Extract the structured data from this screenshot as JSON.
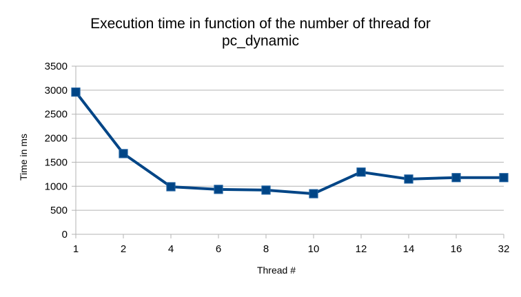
{
  "chart_data": {
    "type": "line",
    "title_lines": [
      "Execution time in function of the number of thread for",
      "pc_dynamic"
    ],
    "xlabel": "Thread #",
    "ylabel": "Time in ms",
    "categories": [
      "1",
      "2",
      "4",
      "6",
      "8",
      "10",
      "12",
      "14",
      "16",
      "32"
    ],
    "series": [
      {
        "values": [
          2960,
          1680,
          990,
          935,
          920,
          845,
          1295,
          1150,
          1180,
          1180
        ],
        "color": "#004586"
      }
    ],
    "ylim": [
      0,
      3500
    ],
    "yticks": [
      0,
      500,
      1000,
      1500,
      2000,
      2500,
      3000,
      3500
    ],
    "grid": true,
    "legend": "none"
  }
}
